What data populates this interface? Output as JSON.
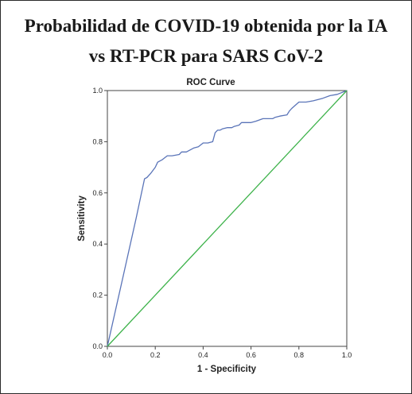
{
  "figure": {
    "title_line1": "Probabilidad de COVID-19 obtenida por la IA",
    "title_line2": "vs RT-PCR para SARS CoV-2"
  },
  "chart_data": {
    "type": "line",
    "title": "ROC Curve",
    "xlabel": "1 - Specificity",
    "ylabel": "Sensitivity",
    "xlim": [
      0,
      1
    ],
    "ylim": [
      0,
      1
    ],
    "xticks": [
      "0.0",
      "0.2",
      "0.4",
      "0.6",
      "0.8",
      "1.0"
    ],
    "yticks": [
      "0.0",
      "0.2",
      "0.4",
      "0.6",
      "0.8",
      "1.0"
    ],
    "grid": false,
    "series": [
      {
        "color": "#5a74b8",
        "x": [
          0,
          0.06,
          0.12,
          0.155,
          0.165,
          0.18,
          0.2,
          0.21,
          0.23,
          0.25,
          0.27,
          0.3,
          0.31,
          0.33,
          0.36,
          0.38,
          0.4,
          0.42,
          0.44,
          0.45,
          0.46,
          0.47,
          0.48,
          0.5,
          0.52,
          0.53,
          0.55,
          0.56,
          0.6,
          0.62,
          0.65,
          0.66,
          0.69,
          0.7,
          0.72,
          0.75,
          0.76,
          0.77,
          0.8,
          0.83,
          0.86,
          0.9,
          0.93,
          0.96,
          1.0
        ],
        "y": [
          0,
          0.25,
          0.5,
          0.655,
          0.66,
          0.675,
          0.7,
          0.72,
          0.73,
          0.745,
          0.745,
          0.75,
          0.76,
          0.76,
          0.775,
          0.78,
          0.795,
          0.795,
          0.8,
          0.835,
          0.845,
          0.845,
          0.85,
          0.855,
          0.855,
          0.86,
          0.865,
          0.875,
          0.875,
          0.88,
          0.89,
          0.89,
          0.89,
          0.895,
          0.9,
          0.905,
          0.92,
          0.93,
          0.955,
          0.955,
          0.96,
          0.97,
          0.98,
          0.985,
          1.0
        ]
      },
      {
        "color": "#3db24a",
        "x": [
          0,
          1
        ],
        "y": [
          0,
          1
        ]
      }
    ]
  }
}
